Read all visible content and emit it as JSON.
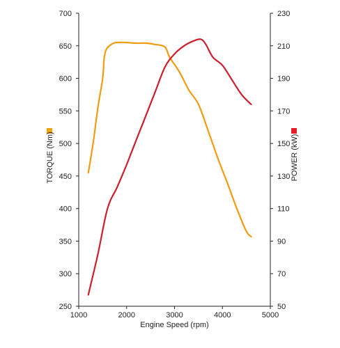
{
  "chart_data": {
    "type": "line",
    "xlabel": "Engine Speed (rpm)",
    "x_ticks": [
      1000,
      2000,
      3000,
      4000,
      5000
    ],
    "xlim": [
      1000,
      5000
    ],
    "grid": false,
    "y_left": {
      "label": "TORQUE (Nm)",
      "ylim": [
        250,
        700
      ],
      "ticks": [
        250,
        300,
        350,
        400,
        450,
        500,
        550,
        600,
        650,
        700
      ],
      "marker_color": "#F0A500"
    },
    "y_right": {
      "label": "POWER (kW)",
      "ylim": [
        50,
        230
      ],
      "ticks": [
        50,
        70,
        90,
        110,
        130,
        150,
        170,
        190,
        210,
        230
      ],
      "marker_color": "#E31D25"
    },
    "series": [
      {
        "key": "torque",
        "axis": "left",
        "color": "#F29B11",
        "points": [
          [
            1200,
            455
          ],
          [
            1300,
            500
          ],
          [
            1400,
            555
          ],
          [
            1500,
            600
          ],
          [
            1530,
            630
          ],
          [
            1580,
            645
          ],
          [
            1700,
            653
          ],
          [
            1800,
            655
          ],
          [
            2000,
            655
          ],
          [
            2200,
            654
          ],
          [
            2400,
            654
          ],
          [
            2600,
            652
          ],
          [
            2800,
            648
          ],
          [
            2900,
            632
          ],
          [
            3100,
            610
          ],
          [
            3300,
            582
          ],
          [
            3500,
            560
          ],
          [
            3700,
            520
          ],
          [
            3900,
            478
          ],
          [
            4100,
            440
          ],
          [
            4300,
            400
          ],
          [
            4500,
            365
          ],
          [
            4600,
            357
          ]
        ]
      },
      {
        "key": "power",
        "axis": "right",
        "color": "#CC1F2D",
        "points": [
          [
            1200,
            57
          ],
          [
            1400,
            82
          ],
          [
            1600,
            110
          ],
          [
            1800,
            123
          ],
          [
            2000,
            137
          ],
          [
            2200,
            152
          ],
          [
            2400,
            167
          ],
          [
            2600,
            182
          ],
          [
            2800,
            197
          ],
          [
            3000,
            205
          ],
          [
            3200,
            210
          ],
          [
            3400,
            213
          ],
          [
            3550,
            214
          ],
          [
            3650,
            211
          ],
          [
            3800,
            203
          ],
          [
            4000,
            198
          ],
          [
            4200,
            189
          ],
          [
            4400,
            180
          ],
          [
            4600,
            174
          ]
        ]
      }
    ]
  }
}
